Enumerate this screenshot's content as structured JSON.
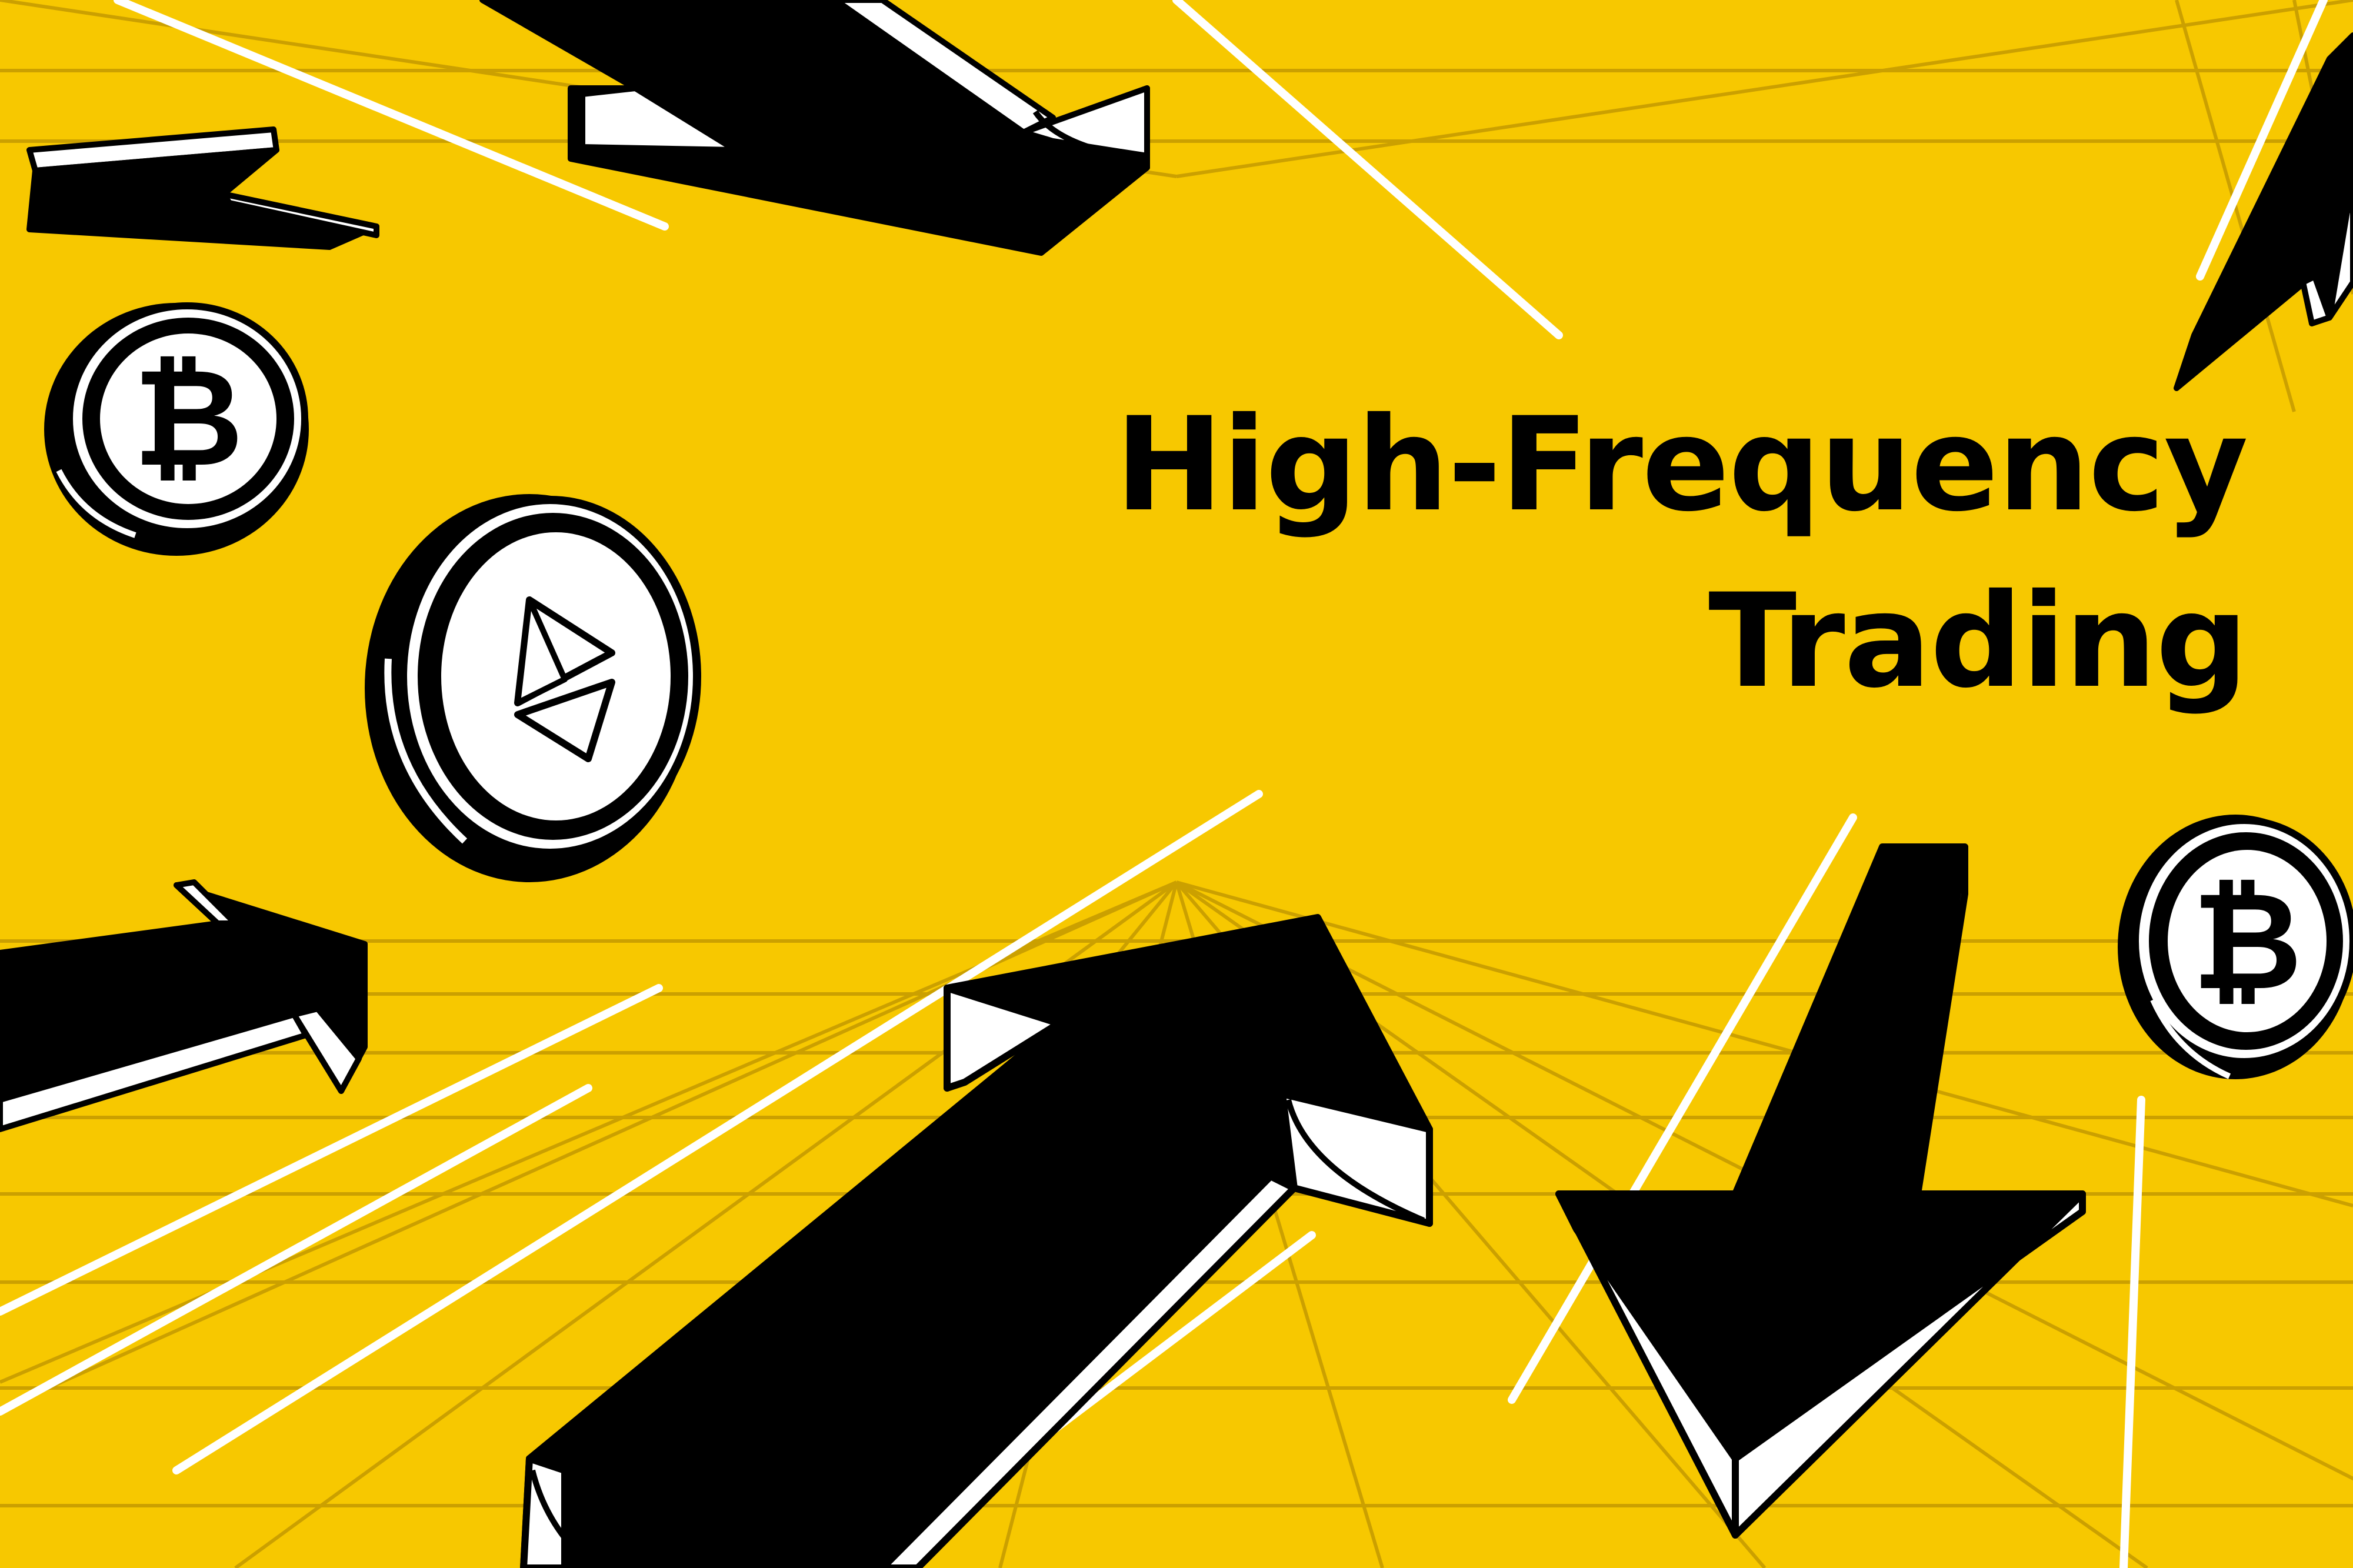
{
  "headline": {
    "line1": "High-Frequency",
    "line2": "Trading"
  },
  "colors": {
    "background": "#f7c800",
    "grid": "#c29a00",
    "ink": "#000000",
    "paper": "#ffffff"
  },
  "icons": [
    "bitcoin-coin-icon",
    "ethereum-coin-icon",
    "arrow-up-icon",
    "arrow-down-icon"
  ]
}
